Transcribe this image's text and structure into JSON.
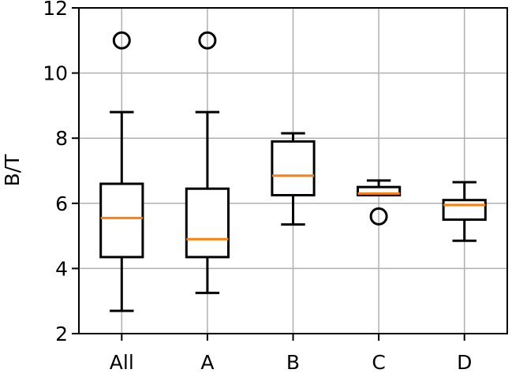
{
  "chart_data": {
    "type": "boxplot",
    "title": "",
    "xlabel": "",
    "ylabel": "B/T",
    "ylim": [
      2,
      12
    ],
    "yticks": [
      2,
      4,
      6,
      8,
      10,
      12
    ],
    "grid": true,
    "categories": [
      "All",
      "A",
      "B",
      "C",
      "D"
    ],
    "boxes": [
      {
        "label": "All",
        "whisker_low": 2.7,
        "q1": 4.35,
        "median": 5.55,
        "q3": 6.6,
        "whisker_high": 8.8,
        "outliers": [
          11.0
        ]
      },
      {
        "label": "A",
        "whisker_low": 3.25,
        "q1": 4.35,
        "median": 4.9,
        "q3": 6.45,
        "whisker_high": 8.8,
        "outliers": [
          11.0
        ]
      },
      {
        "label": "B",
        "whisker_low": 5.35,
        "q1": 6.25,
        "median": 6.85,
        "q3": 7.9,
        "whisker_high": 8.15,
        "outliers": []
      },
      {
        "label": "C",
        "whisker_low": 6.25,
        "q1": 6.25,
        "median": 6.3,
        "q3": 6.5,
        "whisker_high": 6.7,
        "outliers": [
          5.6
        ]
      },
      {
        "label": "D",
        "whisker_low": 4.85,
        "q1": 5.5,
        "median": 5.95,
        "q3": 6.1,
        "whisker_high": 6.65,
        "outliers": []
      }
    ],
    "colors": {
      "box": "#000000",
      "median": "#ff7f0e",
      "grid": "#b0b0b0"
    }
  }
}
